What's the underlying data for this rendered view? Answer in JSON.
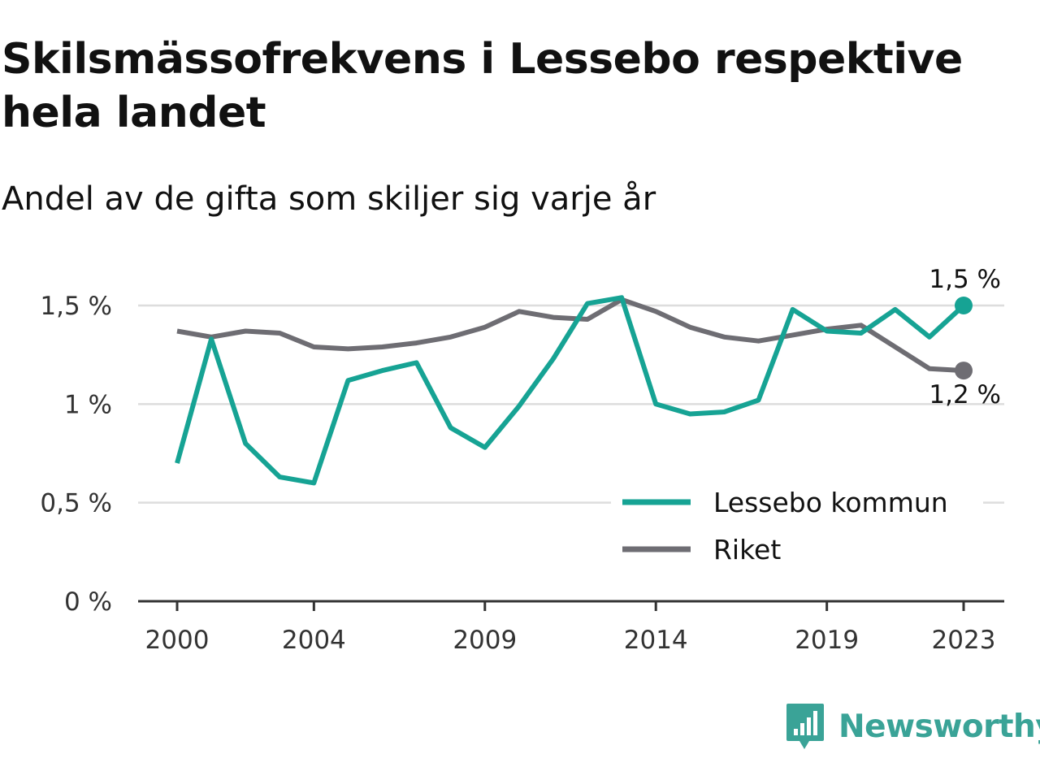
{
  "title": "Skilsmässofrekvens i Lessebo respektive hela landet",
  "subtitle": "Andel av de gifta som skiljer sig varje år",
  "brand": {
    "name": "Newsworthy",
    "icon": "newsworthy-logo-icon",
    "color": "#3aa397"
  },
  "chart_data": {
    "type": "line",
    "title": "Skilsmässofrekvens i Lessebo respektive hela landet",
    "subtitle": "Andel av de gifta som skiljer sig varje år",
    "xlabel": "",
    "ylabel": "",
    "x": [
      2000,
      2001,
      2002,
      2003,
      2004,
      2005,
      2006,
      2007,
      2008,
      2009,
      2010,
      2011,
      2012,
      2013,
      2014,
      2015,
      2016,
      2017,
      2018,
      2019,
      2020,
      2021,
      2022,
      2023
    ],
    "x_ticks": [
      "2000",
      "2004",
      "2009",
      "2014",
      "2019",
      "2023"
    ],
    "y_ticks": [
      "0 %",
      "0,5 %",
      "1 %",
      "1,5 %"
    ],
    "ylim": [
      0,
      1.5
    ],
    "grid": true,
    "legend_position": "bottom-right",
    "series": [
      {
        "name": "Lessebo kommun",
        "color": "#16a394",
        "values": [
          0.7,
          1.33,
          0.8,
          0.63,
          0.6,
          1.12,
          1.17,
          1.21,
          0.88,
          0.78,
          0.99,
          1.23,
          1.51,
          1.54,
          1.0,
          0.95,
          0.96,
          1.02,
          1.48,
          1.37,
          1.36,
          1.48,
          1.34,
          1.5
        ],
        "end_label": "1,5 %"
      },
      {
        "name": "Riket",
        "color": "#6e6d73",
        "values": [
          1.37,
          1.34,
          1.37,
          1.36,
          1.29,
          1.28,
          1.29,
          1.31,
          1.34,
          1.39,
          1.47,
          1.44,
          1.43,
          1.53,
          1.47,
          1.39,
          1.34,
          1.32,
          1.35,
          1.38,
          1.4,
          1.29,
          1.18,
          1.17
        ],
        "end_label": "1,2 %"
      }
    ]
  }
}
